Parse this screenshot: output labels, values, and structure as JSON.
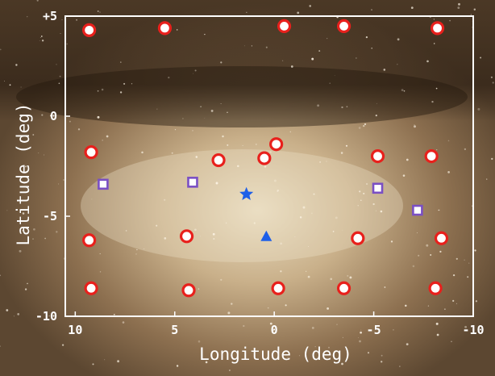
{
  "chart_data": {
    "type": "scatter",
    "xlabel": "Longitude (deg)",
    "ylabel": "Latitude (deg)",
    "xlim": [
      10.5,
      -10
    ],
    "ylim": [
      -10,
      5
    ],
    "xticks": [
      {
        "value": 10,
        "label": "10"
      },
      {
        "value": 5,
        "label": "5"
      },
      {
        "value": 0,
        "label": "0"
      },
      {
        "value": -5,
        "label": "-5"
      },
      {
        "value": -10,
        "label": "-10"
      }
    ],
    "yticks": [
      {
        "value": 5,
        "label": "+5"
      },
      {
        "value": 0,
        "label": "0"
      },
      {
        "value": -5,
        "label": "-5"
      },
      {
        "value": -10,
        "label": "-10"
      }
    ],
    "grid": false,
    "background": "Milky Way star-field photograph",
    "series": [
      {
        "marker": "circle",
        "color": "#e8201c",
        "points": [
          {
            "x": 9.3,
            "y": 4.3
          },
          {
            "x": 5.5,
            "y": 4.4
          },
          {
            "x": -0.5,
            "y": 4.5
          },
          {
            "x": -3.5,
            "y": 4.5
          },
          {
            "x": -8.2,
            "y": 4.4
          },
          {
            "x": 9.2,
            "y": -1.8
          },
          {
            "x": 2.8,
            "y": -2.2
          },
          {
            "x": 0.5,
            "y": -2.1
          },
          {
            "x": -0.1,
            "y": -1.4
          },
          {
            "x": -5.2,
            "y": -2.0
          },
          {
            "x": -7.9,
            "y": -2.0
          },
          {
            "x": 9.3,
            "y": -6.2
          },
          {
            "x": 4.4,
            "y": -6.0
          },
          {
            "x": -4.2,
            "y": -6.1
          },
          {
            "x": -8.4,
            "y": -6.1
          },
          {
            "x": 9.2,
            "y": -8.6
          },
          {
            "x": 4.3,
            "y": -8.7
          },
          {
            "x": -0.2,
            "y": -8.6
          },
          {
            "x": -3.5,
            "y": -8.6
          },
          {
            "x": -8.1,
            "y": -8.6
          }
        ]
      },
      {
        "marker": "square",
        "color": "#7a4fc4",
        "points": [
          {
            "x": 8.6,
            "y": -3.4
          },
          {
            "x": 4.1,
            "y": -3.3
          },
          {
            "x": -5.2,
            "y": -3.6
          },
          {
            "x": -7.2,
            "y": -4.7
          }
        ]
      },
      {
        "marker": "star",
        "color": "#1e5fe8",
        "points": [
          {
            "x": 1.4,
            "y": -3.9
          }
        ]
      },
      {
        "marker": "triangle",
        "color": "#1e5fe8",
        "points": [
          {
            "x": 0.4,
            "y": -6.0
          }
        ]
      }
    ]
  }
}
